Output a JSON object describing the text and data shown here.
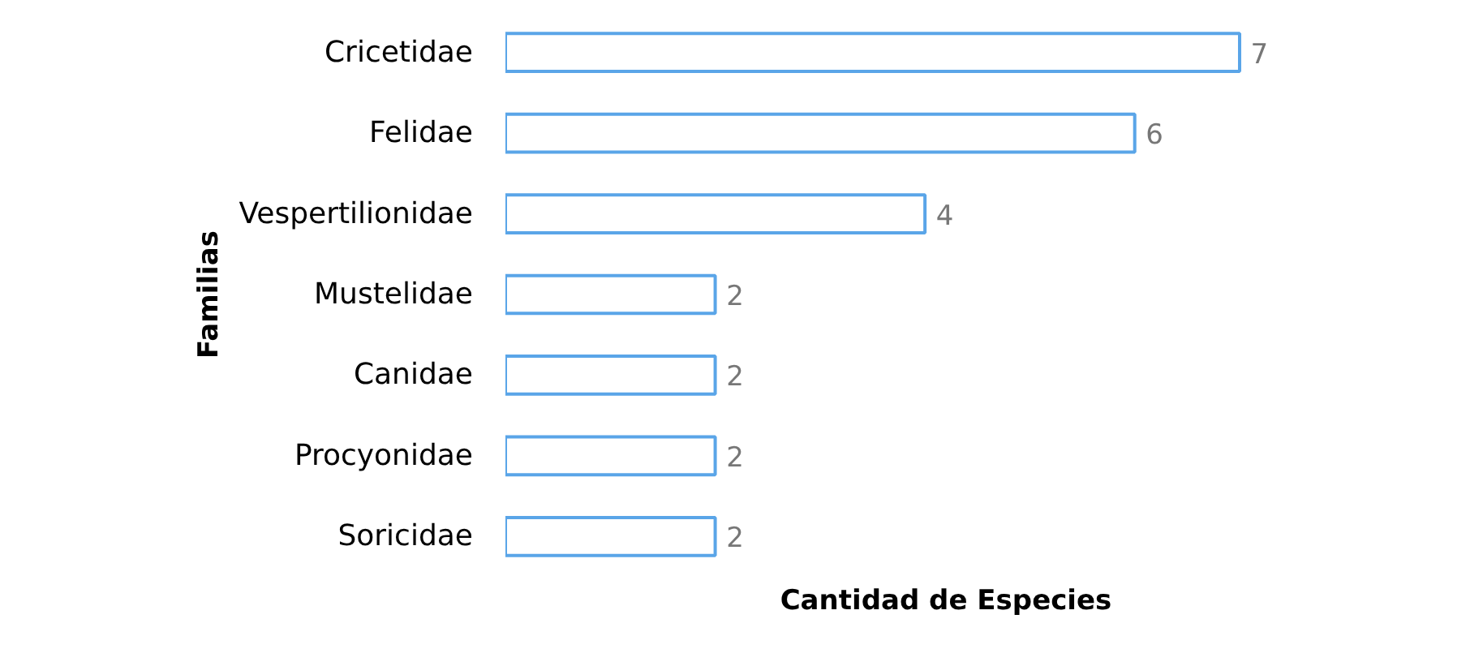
{
  "chart_data": {
    "type": "bar",
    "orientation": "horizontal",
    "xlabel": "Cantidad de Especies",
    "ylabel": "Familias",
    "categories": [
      "Cricetidae",
      "Felidae",
      "Vespertilionidae",
      "Mustelidae",
      "Canidae",
      "Procyonidae",
      "Soricidae"
    ],
    "values": [
      7,
      6,
      4,
      2,
      2,
      2,
      2
    ],
    "color": "#5aa5e8",
    "data_labels": true,
    "grid": false
  }
}
